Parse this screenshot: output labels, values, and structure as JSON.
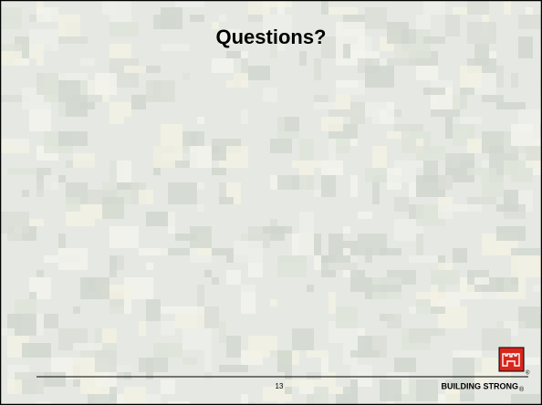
{
  "slide": {
    "title": "Questions?",
    "page_number": "13",
    "footer": {
      "tagline": "BUILDING STRONG",
      "registered": "®"
    }
  }
}
